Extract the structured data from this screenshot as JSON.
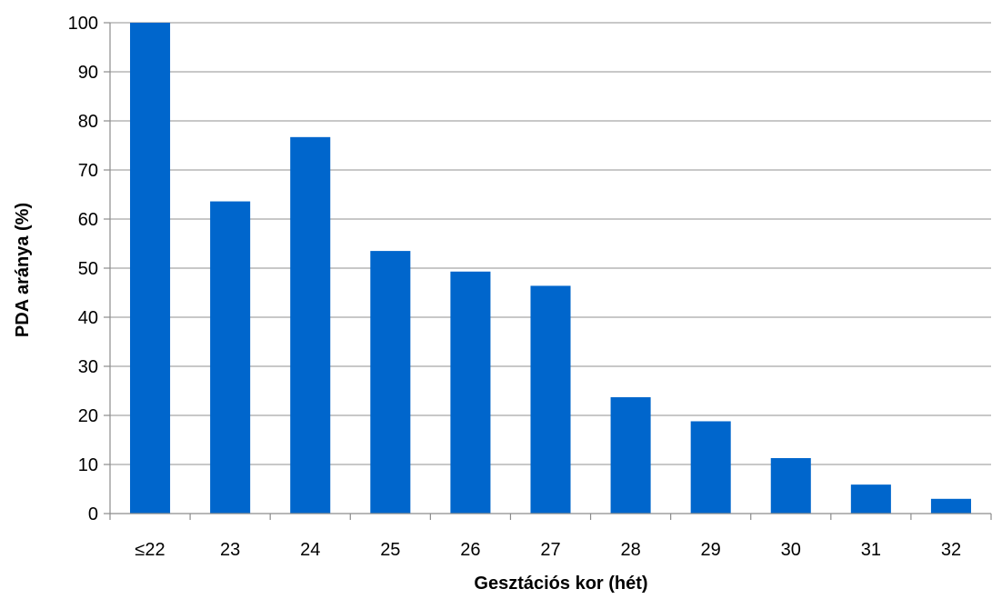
{
  "chart_data": {
    "type": "bar",
    "title": "",
    "xlabel": "Gesztációs kor (hét)",
    "ylabel": "PDA aránya (%)",
    "categories": [
      "≤22",
      "23",
      "24",
      "25",
      "26",
      "27",
      "28",
      "29",
      "30",
      "31",
      "32"
    ],
    "series": [
      {
        "values": [
          100,
          63.6,
          76.7,
          53.5,
          49.3,
          46.4,
          23.7,
          18.8,
          11.3,
          5.9,
          3.0
        ]
      }
    ],
    "ylim": [
      0,
      100
    ],
    "yticks": [
      0,
      10,
      20,
      30,
      40,
      50,
      60,
      70,
      80,
      90,
      100
    ],
    "grid": "horizontal",
    "legend": "none",
    "colors": {
      "bar": "#0066CC",
      "grid": "#A6A6A6",
      "axis": "#8C8C8C"
    }
  }
}
